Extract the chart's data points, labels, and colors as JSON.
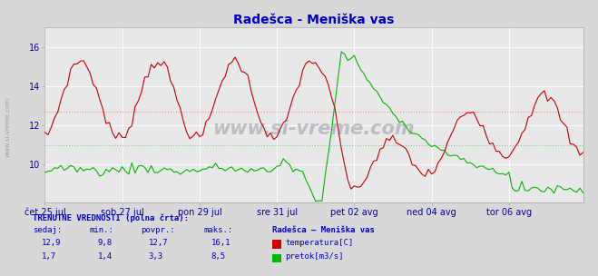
{
  "title": "Radešca - Meniška vas",
  "title_color": "#0000cc",
  "bg_color": "#d8d8d8",
  "plot_bg_color": "#e8e8e8",
  "grid_color": "#ffffff",
  "axis_color": "#0000aa",
  "x_tick_labels": [
    "čet 25 jul",
    "sob 27 jul",
    "pon 29 jul",
    "sre 31 jul",
    "pet 02 avg",
    "ned 04 avg",
    "tor 06 avg"
  ],
  "x_tick_positions": [
    0,
    24,
    48,
    72,
    96,
    120,
    144
  ],
  "y_ticks_temp": [
    10,
    12,
    14,
    16
  ],
  "temp_avg": 12.7,
  "flow_avg": 3.3,
  "temp_color": "#cc0000",
  "flow_color": "#00bb00",
  "avg_line_color_temp": "#ff8888",
  "avg_line_color_flow": "#88cc88",
  "watermark": "www.si-vreme.com",
  "bottom_text_color": "#0000cc",
  "legend_title": "Radešca – Meniška vas",
  "label_temp": "temperatura[C]",
  "label_flow": "pretok[m3/s]",
  "n_points": 168,
  "temp_min": 8,
  "temp_max": 17,
  "flow_min": 0,
  "flow_max": 10
}
